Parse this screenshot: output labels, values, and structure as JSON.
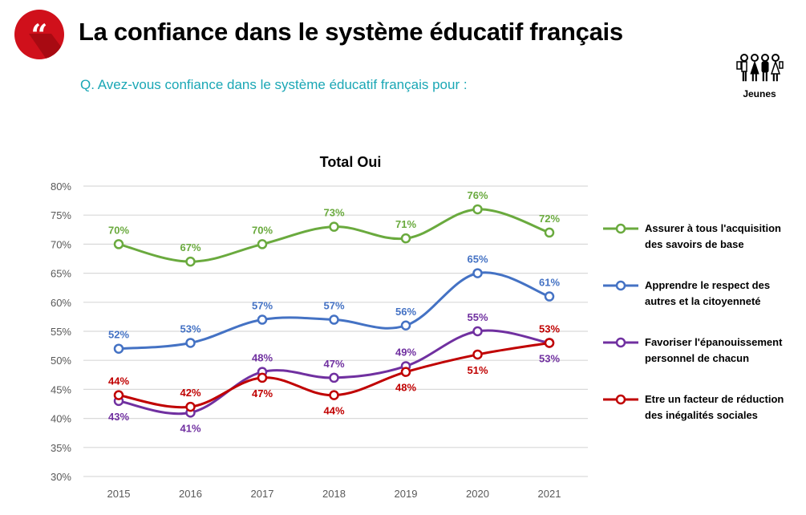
{
  "header": {
    "title": "La confiance dans le système éducatif français",
    "question": "Q. Avez-vous confiance dans le système éducatif français pour :",
    "audience_label": "Jeunes",
    "logo_icon": "quote-icon",
    "audience_icon": "group-of-people-icon",
    "brand_color": "#d0101b",
    "question_color": "#1aa7b5"
  },
  "chart_data": {
    "type": "line",
    "title": "Total Oui",
    "xlabel": "",
    "ylabel": "",
    "x": [
      "2015",
      "2016",
      "2017",
      "2018",
      "2019",
      "2020",
      "2021"
    ],
    "ylim": [
      30,
      80
    ],
    "yticks": [
      "30%",
      "35%",
      "40%",
      "45%",
      "50%",
      "55%",
      "60%",
      "65%",
      "70%",
      "75%",
      "80%"
    ],
    "grid": true,
    "legend_position": "right",
    "series": [
      {
        "name": "Assurer à tous l'acquisition des savoirs de base",
        "legend_lines": [
          "Assurer à tous l'acquisition",
          "des savoirs de base"
        ],
        "color": "#6aaa3e",
        "values": [
          70,
          67,
          70,
          73,
          71,
          76,
          72
        ],
        "labels": [
          "70%",
          "67%",
          "70%",
          "73%",
          "71%",
          "76%",
          "72%"
        ]
      },
      {
        "name": "Apprendre le respect des autres et la citoyenneté",
        "legend_lines": [
          "Apprendre le respect des",
          "autres et la citoyenneté"
        ],
        "color": "#4472c4",
        "values": [
          52,
          53,
          57,
          57,
          56,
          65,
          61
        ],
        "labels": [
          "52%",
          "53%",
          "57%",
          "57%",
          "56%",
          "65%",
          "61%"
        ]
      },
      {
        "name": "Favoriser l'épanouissement personnel de chacun",
        "legend_lines": [
          "Favoriser l'épanouissement",
          "personnel de chacun"
        ],
        "color": "#7030a0",
        "values": [
          43,
          41,
          48,
          47,
          49,
          55,
          53
        ],
        "labels": [
          "43%",
          "41%",
          "48%",
          "47%",
          "49%",
          "55%",
          "53%"
        ]
      },
      {
        "name": "Etre un facteur de réduction des inégalités sociales",
        "legend_lines": [
          "Etre un facteur de réduction",
          "des inégalités sociales"
        ],
        "color": "#c00000",
        "values": [
          44,
          42,
          47,
          44,
          48,
          51,
          53
        ],
        "labels": [
          "44%",
          "42%",
          "47%",
          "44%",
          "48%",
          "51%",
          "53%"
        ]
      }
    ]
  }
}
